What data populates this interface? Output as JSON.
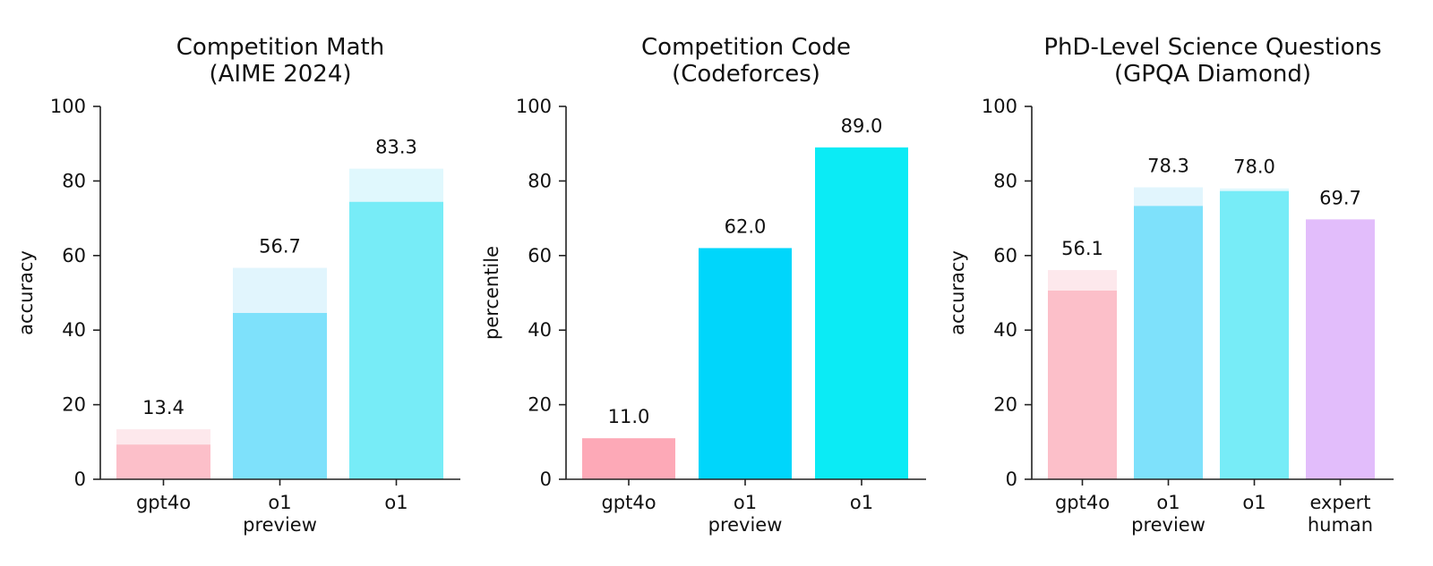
{
  "chart_data": [
    {
      "type": "bar",
      "title": [
        "Competition Math",
        "(AIME 2024)"
      ],
      "ylabel": "accuracy",
      "ylim": [
        0,
        100
      ],
      "yticks": [
        0,
        20,
        40,
        60,
        80,
        100
      ],
      "categories": [
        [
          "gpt4o"
        ],
        [
          "o1",
          "preview"
        ],
        [
          "o1"
        ]
      ],
      "values": [
        13.4,
        56.7,
        83.3
      ],
      "value_labels": [
        "13.4",
        "56.7",
        "83.3"
      ],
      "inner_values": [
        9.3,
        44.6,
        74.4
      ],
      "colors": [
        "#fcbfc9",
        "#7ee1fb",
        "#77ecf7"
      ],
      "light_colors": [
        "#fde8ec",
        "#e1f5fd",
        "#e0f8fd"
      ]
    },
    {
      "type": "bar",
      "title": [
        "Competition Code",
        "(Codeforces)"
      ],
      "ylabel": "percentile",
      "ylim": [
        0,
        100
      ],
      "yticks": [
        0,
        20,
        40,
        60,
        80,
        100
      ],
      "categories": [
        [
          "gpt4o"
        ],
        [
          "o1",
          "preview"
        ],
        [
          "o1"
        ]
      ],
      "values": [
        11.0,
        62.0,
        89.0
      ],
      "value_labels": [
        "11.0",
        "62.0",
        "89.0"
      ],
      "inner_values": [
        null,
        null,
        null
      ],
      "colors": [
        "#fda9b7",
        "#00d6fb",
        "#0bebf5"
      ],
      "light_colors": [
        null,
        null,
        null
      ]
    },
    {
      "type": "bar",
      "title": [
        "PhD-Level Science Questions",
        "(GPQA Diamond)"
      ],
      "ylabel": "accuracy",
      "ylim": [
        0,
        100
      ],
      "yticks": [
        0,
        20,
        40,
        60,
        80,
        100
      ],
      "categories": [
        [
          "gpt4o"
        ],
        [
          "o1",
          "preview"
        ],
        [
          "o1"
        ],
        [
          "expert",
          "human"
        ]
      ],
      "values": [
        56.1,
        78.3,
        78.0,
        69.7
      ],
      "value_labels": [
        "56.1",
        "78.3",
        "78.0",
        "69.7"
      ],
      "inner_values": [
        50.6,
        73.3,
        77.3,
        null
      ],
      "colors": [
        "#fcbfc9",
        "#7ee1fb",
        "#77ecf7",
        "#e2bdfb"
      ],
      "light_colors": [
        "#fde8ec",
        "#e1f5fd",
        "#e0f8fd",
        null
      ]
    }
  ]
}
